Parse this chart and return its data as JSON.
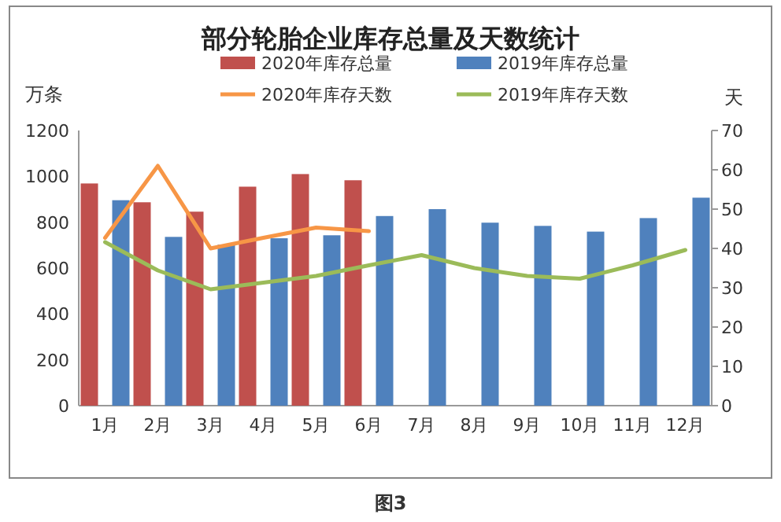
{
  "chart_data": {
    "type": "bar",
    "title": "部分轮胎企业库存总量及天数统计",
    "ylabel": "万条",
    "y2label": "天",
    "categories": [
      "1月",
      "2月",
      "3月",
      "4月",
      "5月",
      "6月",
      "7月",
      "8月",
      "9月",
      "10月",
      "11月",
      "12月"
    ],
    "series": [
      {
        "name": "2020年库存总量",
        "color": "#c0504d",
        "values": [
          969,
          887,
          846,
          955,
          1010,
          983,
          null,
          null,
          null,
          null,
          null,
          null
        ]
      },
      {
        "name": "2019年库存总量",
        "color": "#4f81bd",
        "values": [
          896,
          736,
          702,
          730,
          743,
          827,
          857,
          798,
          784,
          759,
          818,
          907
        ]
      },
      {
        "name": "2020年库存天数",
        "type": "line",
        "axis": "y2",
        "color": "#f79646",
        "values": [
          42.7,
          61,
          40,
          42.7,
          45.3,
          44.4,
          null,
          null,
          null,
          null,
          null,
          null
        ]
      },
      {
        "name": "2019年库存天数",
        "type": "line",
        "axis": "y2",
        "color": "#9bbb59",
        "values": [
          41.6,
          34.4,
          29.6,
          31.3,
          33,
          35.7,
          38.3,
          35,
          33,
          32.3,
          35.7,
          39.6
        ]
      }
    ],
    "ylim": [
      0,
      1200
    ],
    "yticks": [
      0,
      200,
      400,
      600,
      800,
      1000,
      1200
    ],
    "y2lim": [
      0,
      70
    ],
    "y2ticks": [
      0,
      10,
      20,
      30,
      40,
      50,
      60,
      70
    ],
    "legend": "top",
    "grid": false,
    "marker": "none",
    "line_style": "solid",
    "annotations": [
      "图3"
    ]
  }
}
